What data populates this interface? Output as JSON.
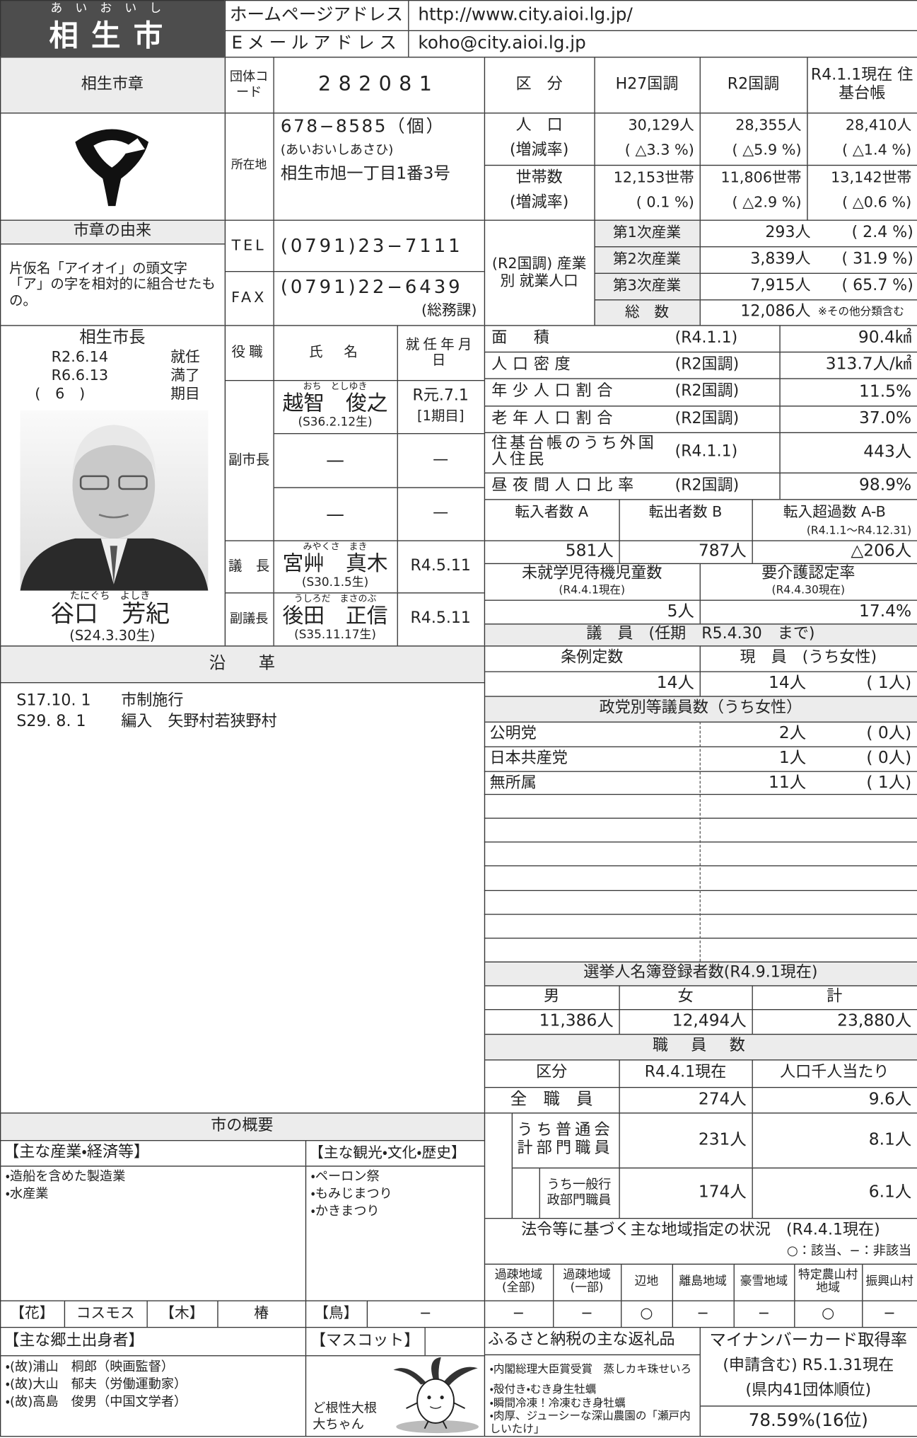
{
  "header": {
    "ruby": "あいおいし",
    "city": "相生市",
    "homepage_label": "ホームページアドレス",
    "homepage": "http://www.city.aioi.lg.jp/",
    "email_label": "Eメールアドレス",
    "email": "koho@city.aioi.lg.jp"
  },
  "emblem": {
    "title": "相生市章",
    "origin_title": "市章の由来",
    "origin_text": "片仮名「アイオイ」の頭文字「ア」の字を相対的に組合せたもの。"
  },
  "contact": {
    "code_label": "団体コード",
    "code": "282081",
    "address_label": "所在地",
    "postal": "678−8585（個）",
    "address_kana": "(あいおいしあさひ)",
    "address": "相生市旭一丁目1番3号",
    "tel_label": "TEL",
    "tel": "(0791)23−7111",
    "fax_label": "FAX",
    "fax": "(0791)22−6439",
    "fax_note": "(総務課)"
  },
  "population": {
    "headers": [
      "区　分",
      "H27国調",
      "R2国調",
      "R4.1.1現在 住基台帳"
    ],
    "rows": [
      {
        "label": "人　口",
        "sublabel": "(増減率)",
        "values": [
          "30,129人",
          "28,355人",
          "28,410人"
        ],
        "rates": [
          "( △3.3 %)",
          "( △5.9 %)",
          "( △1.4 %)"
        ]
      },
      {
        "label": "世帯数",
        "sublabel": "(増減率)",
        "values": [
          "12,153世帯",
          "11,806世帯",
          "13,142世帯"
        ],
        "rates": [
          "( 0.1 %)",
          "( △2.9 %)",
          "( △0.6 %)"
        ]
      }
    ]
  },
  "employment": {
    "label": "(R2国調) 産業別 就業人口",
    "rows": [
      {
        "name": "第1次産業",
        "value": "293人",
        "rate": "( 2.4 %)"
      },
      {
        "name": "第2次産業",
        "value": "3,839人",
        "rate": "( 31.9 %)"
      },
      {
        "name": "第3次産業",
        "value": "7,915人",
        "rate": "( 65.7 %)"
      },
      {
        "name": "総　数",
        "value": "12,086人",
        "rate": "※その他分類含む"
      }
    ]
  },
  "mayor": {
    "title": "相生市長",
    "start_date": "R2.6.14",
    "start_label": "就任",
    "end_date": "R6.6.13",
    "end_label": "満了",
    "term": "(　6　)",
    "term_label": "期目",
    "name_ruby": "たにぐち　よしき",
    "name": "谷口　芳紀",
    "birth": "(S24.3.30生)"
  },
  "officials": {
    "headers": [
      "役職",
      "氏　名",
      "就任年月日"
    ],
    "vice_mayor_label": "副市長",
    "vice_mayors": [
      {
        "ruby": "おち　としゆき",
        "name": "越智　俊之",
        "birth": "(S36.2.12生)",
        "date": "R元.7.1",
        "term": "[1期目]"
      },
      {
        "name": "—",
        "date": "—"
      },
      {
        "name": "—",
        "date": "—"
      }
    ],
    "chair": {
      "role": "議　長",
      "ruby": "みやくさ　まき",
      "name": "宮艸　真木",
      "birth": "(S30.1.5生)",
      "date": "R4.5.11"
    },
    "vice_chair": {
      "role": "副議長",
      "ruby": "うしろだ　まさのぶ",
      "name": "後田　正信",
      "birth": "(S35.11.17生)",
      "date": "R4.5.11"
    }
  },
  "stats": [
    {
      "label": "面　積",
      "note": "(R4.1.1)",
      "value": "90.4㎢"
    },
    {
      "label": "人口密度",
      "note": "(R2国調)",
      "value": "313.7人/㎢"
    },
    {
      "label": "年少人口割合",
      "note": "(R2国調)",
      "value": "11.5%"
    },
    {
      "label": "老年人口割合",
      "note": "(R2国調)",
      "value": "37.0%"
    },
    {
      "label": "住基台帳のうち外国人住民",
      "note": "(R4.1.1)",
      "value": "443人"
    },
    {
      "label": "昼夜間人口比率",
      "note": "(R2国調)",
      "value": "98.9%"
    }
  ],
  "migration": {
    "headers": [
      "転入者数 A",
      "転出者数 B",
      "転入超過数 A-B"
    ],
    "note": "(R4.1.1～R4.12.31)",
    "values": [
      "581人",
      "787人",
      "△206人"
    ]
  },
  "childcare": {
    "waiting_label": "未就学児待機児童数",
    "waiting_note": "(R4.4.1現在)",
    "waiting": "5人",
    "care_label": "要介護認定率",
    "care_note": "(R4.4.30現在)",
    "care": "17.4%"
  },
  "council": {
    "title": "議　員　(任期　R5.4.30　まで)",
    "fixed_label": "条例定数",
    "current_label": "現　員　(うち女性)",
    "fixed": "14人",
    "current": "14人",
    "women": "( 1人)",
    "party_title": "政党別等議員数（うち女性）",
    "parties": [
      {
        "name": "公明党",
        "count": "2人",
        "women": "( 0人)"
      },
      {
        "name": "日本共産党",
        "count": "1人",
        "women": "( 0人)"
      },
      {
        "name": "無所属",
        "count": "11人",
        "women": "( 1人)"
      }
    ]
  },
  "voters": {
    "title": "選挙人名簿登録者数(R4.9.1現在)",
    "headers": [
      "男",
      "女",
      "計"
    ],
    "values": [
      "11,386人",
      "12,494人",
      "23,880人"
    ]
  },
  "staff": {
    "title": "職　員　数",
    "headers": [
      "区分",
      "R4.4.1現在",
      "人口千人当たり"
    ],
    "rows": [
      {
        "label": "全　職　員",
        "value": "274人",
        "per": "9.6人"
      },
      {
        "label": "うち普通会計部門職員",
        "value": "231人",
        "per": "8.1人"
      },
      {
        "label": "うち一般行政部門職員",
        "value": "174人",
        "per": "6.1人"
      }
    ]
  },
  "zones": {
    "title": "法令等に基づく主な地域指定の状況　(R4.4.1現在)",
    "legend": "○：該当、−：非該当",
    "headers": [
      "過疎地域(全部)",
      "過疎地域(一部)",
      "辺地",
      "離島地域",
      "豪雪地域",
      "特定農山村地域",
      "振興山村"
    ],
    "values": [
      "−",
      "−",
      "○",
      "−",
      "−",
      "○",
      "−"
    ]
  },
  "history": {
    "title": "沿　　革",
    "items": [
      {
        "date": "S17.10. 1",
        "text": "市制施行"
      },
      {
        "date": "S29. 8. 1",
        "text": "編入　矢野村若狭野村"
      }
    ]
  },
  "overview": {
    "title": "市の概要",
    "industry_title": "【主な産業・経済等】",
    "industry": [
      "・造船を含めた製造業",
      "・水産業"
    ],
    "tourism_title": "【主な観光・文化・歴史】",
    "tourism": [
      "・ペーロン祭",
      "・もみじまつり",
      "・かきまつり"
    ],
    "flower_label": "【花】",
    "flower": "コスモス",
    "tree_label": "【木】",
    "tree": "椿",
    "bird_label": "【鳥】",
    "bird": "−",
    "people_title": "【主な郷土出身者】",
    "people": [
      "・(故)浦山　桐郎（映画監督）",
      "・(故)大山　郁夫（労働運動家）",
      "・(故)高島　俊男（中国文学者）"
    ],
    "mascot_title": "【マスコット】",
    "mascot": "ど根性大根大ちゃん"
  },
  "furusato": {
    "title": "ふるさと納税の主な返礼品",
    "items": [
      "・内閣総理大臣賞受賞　蒸しカキ珠せいろ",
      "・殻付き・むき身生牡蠣",
      "・瞬間冷凍！冷凍むき身牡蠣",
      "・肉厚、ジューシーな深山農園の「瀬戸内しいたけ」"
    ]
  },
  "mynumber": {
    "title": "マイナンバーカード取得率",
    "subtitle": "(申請含む) R5.1.31現在",
    "rank_note": "(県内41団体順位)",
    "value": "78.59%(16位)"
  }
}
